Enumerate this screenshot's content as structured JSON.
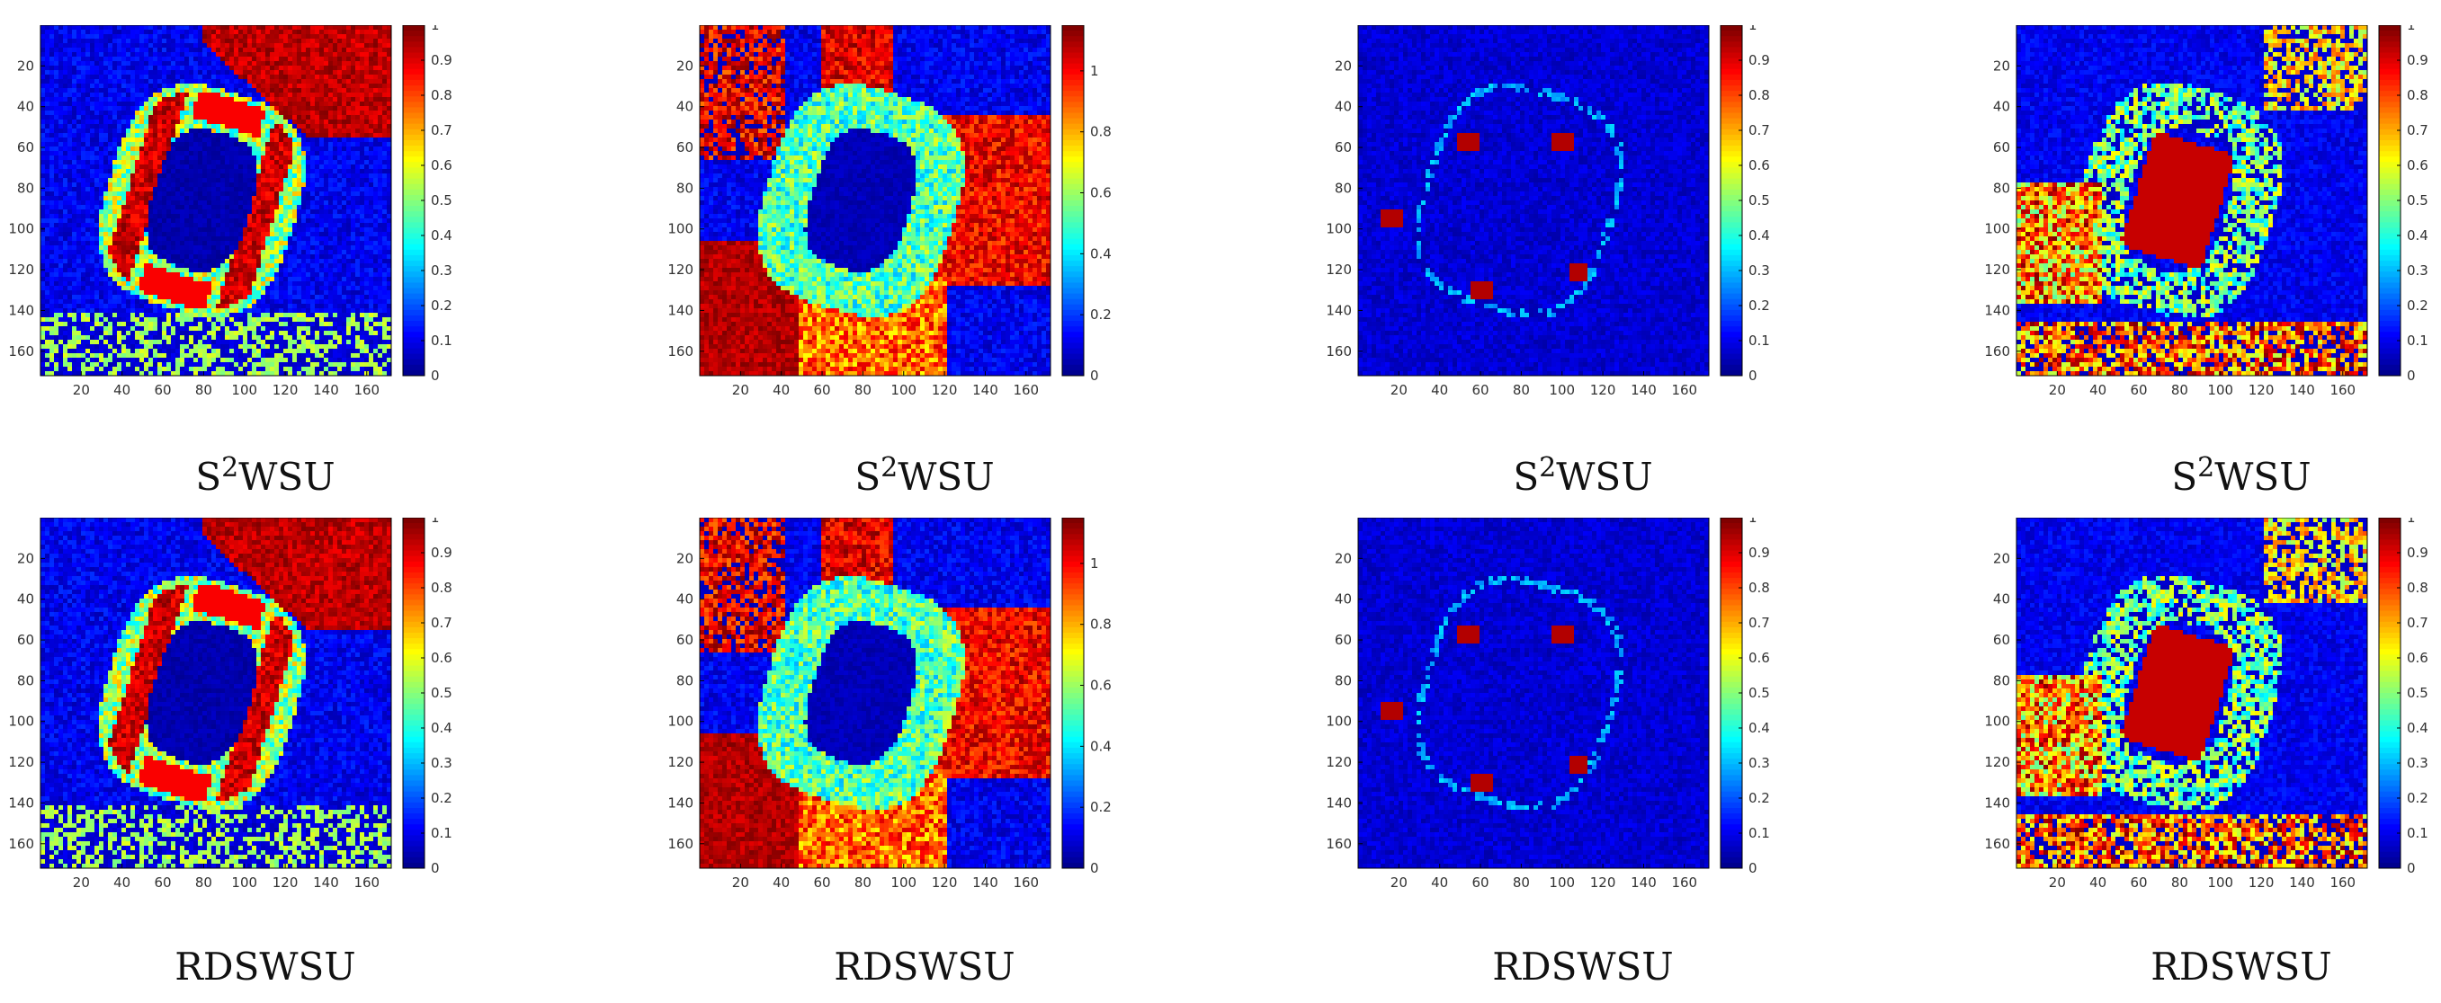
{
  "chart_data": [
    {
      "type": "heatmap",
      "title": "S2WSU",
      "caption_base": "S",
      "caption_sup": "2",
      "caption_rest": "WSU",
      "pattern": "concrete",
      "ylim": [
        0,
        1
      ],
      "cbar_ticks": [
        "0",
        "0.1",
        "0.2",
        "0.3",
        "0.4",
        "0.5",
        "0.6",
        "0.7",
        "0.8",
        "0.9",
        "1"
      ],
      "x_ticks": [
        "20",
        "40",
        "60",
        "80",
        "100",
        "120",
        "140",
        "160"
      ],
      "y_ticks": [
        "20",
        "40",
        "60",
        "80",
        "100",
        "120",
        "140",
        "160"
      ]
    },
    {
      "type": "heatmap",
      "title": "S2WSU",
      "caption_base": "S",
      "caption_sup": "2",
      "caption_rest": "WSU",
      "pattern": "soil",
      "ylim": [
        0,
        1.15
      ],
      "cbar_ticks": [
        "0",
        "0.2",
        "0.4",
        "0.6",
        "0.8",
        "1"
      ],
      "x_ticks": [
        "20",
        "40",
        "60",
        "80",
        "100",
        "120",
        "140",
        "160"
      ],
      "y_ticks": [
        "20",
        "40",
        "60",
        "80",
        "100",
        "120",
        "140",
        "160"
      ]
    },
    {
      "type": "heatmap",
      "title": "S2WSU",
      "caption_base": "S",
      "caption_sup": "2",
      "caption_rest": "WSU",
      "pattern": "towers",
      "ylim": [
        0,
        1
      ],
      "cbar_ticks": [
        "0",
        "0.1",
        "0.2",
        "0.3",
        "0.4",
        "0.5",
        "0.6",
        "0.7",
        "0.8",
        "0.9",
        "1"
      ],
      "x_ticks": [
        "20",
        "40",
        "60",
        "80",
        "100",
        "120",
        "140",
        "160"
      ],
      "y_ticks": [
        "20",
        "40",
        "60",
        "80",
        "100",
        "120",
        "140",
        "160"
      ]
    },
    {
      "type": "heatmap",
      "title": "S2WSU",
      "caption_base": "S",
      "caption_sup": "2",
      "caption_rest": "WSU",
      "pattern": "field",
      "ylim": [
        0,
        1
      ],
      "cbar_ticks": [
        "0",
        "0.1",
        "0.2",
        "0.3",
        "0.4",
        "0.5",
        "0.6",
        "0.7",
        "0.8",
        "0.9",
        "1"
      ],
      "x_ticks": [
        "20",
        "40",
        "60",
        "80",
        "100",
        "120",
        "140",
        "160"
      ],
      "y_ticks": [
        "20",
        "40",
        "60",
        "80",
        "100",
        "120",
        "140",
        "160"
      ]
    },
    {
      "type": "heatmap",
      "title": "RDSWSU",
      "caption_base": "RDSWSU",
      "caption_sup": "",
      "caption_rest": "",
      "pattern": "concrete",
      "ylim": [
        0,
        1
      ],
      "cbar_ticks": [
        "0",
        "0.1",
        "0.2",
        "0.3",
        "0.4",
        "0.5",
        "0.6",
        "0.7",
        "0.8",
        "0.9",
        "1"
      ],
      "x_ticks": [
        "20",
        "40",
        "60",
        "80",
        "100",
        "120",
        "140",
        "160"
      ],
      "y_ticks": [
        "20",
        "40",
        "60",
        "80",
        "100",
        "120",
        "140",
        "160"
      ]
    },
    {
      "type": "heatmap",
      "title": "RDSWSU",
      "caption_base": "RDSWSU",
      "caption_sup": "",
      "caption_rest": "",
      "pattern": "soil",
      "ylim": [
        0,
        1.15
      ],
      "cbar_ticks": [
        "0",
        "0.2",
        "0.4",
        "0.6",
        "0.8",
        "1"
      ],
      "x_ticks": [
        "20",
        "40",
        "60",
        "80",
        "100",
        "120",
        "140",
        "160"
      ],
      "y_ticks": [
        "20",
        "40",
        "60",
        "80",
        "100",
        "120",
        "140",
        "160"
      ]
    },
    {
      "type": "heatmap",
      "title": "RDSWSU",
      "caption_base": "RDSWSU",
      "caption_sup": "",
      "caption_rest": "",
      "pattern": "towers",
      "ylim": [
        0,
        1
      ],
      "cbar_ticks": [
        "0",
        "0.1",
        "0.2",
        "0.3",
        "0.4",
        "0.5",
        "0.6",
        "0.7",
        "0.8",
        "0.9",
        "1"
      ],
      "x_ticks": [
        "20",
        "40",
        "60",
        "80",
        "100",
        "120",
        "140",
        "160"
      ],
      "y_ticks": [
        "20",
        "40",
        "60",
        "80",
        "100",
        "120",
        "140",
        "160"
      ]
    },
    {
      "type": "heatmap",
      "title": "RDSWSU",
      "caption_base": "RDSWSU",
      "caption_sup": "",
      "caption_rest": "",
      "pattern": "field",
      "ylim": [
        0,
        1
      ],
      "cbar_ticks": [
        "0",
        "0.1",
        "0.2",
        "0.3",
        "0.4",
        "0.5",
        "0.6",
        "0.7",
        "0.8",
        "0.9",
        "1"
      ],
      "x_ticks": [
        "20",
        "40",
        "60",
        "80",
        "100",
        "120",
        "140",
        "160"
      ],
      "y_ticks": [
        "20",
        "40",
        "60",
        "80",
        "100",
        "120",
        "140",
        "160"
      ]
    }
  ],
  "colors": {
    "colormap": "jet",
    "background": "#ffffff",
    "axis": "#000000"
  }
}
